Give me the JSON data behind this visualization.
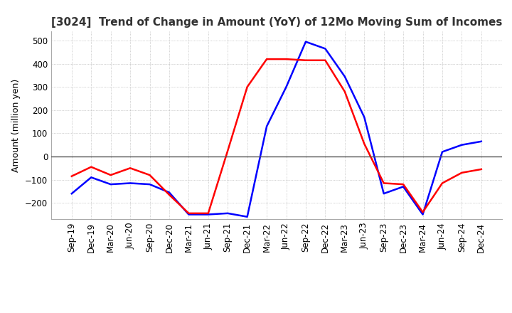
{
  "title": "[3024]  Trend of Change in Amount (YoY) of 12Mo Moving Sum of Incomes",
  "ylabel": "Amount (million yen)",
  "ylim": [
    -270,
    540
  ],
  "yticks": [
    -200,
    -100,
    0,
    100,
    200,
    300,
    400,
    500
  ],
  "x_labels": [
    "Sep-19",
    "Dec-19",
    "Mar-20",
    "Jun-20",
    "Sep-20",
    "Dec-20",
    "Mar-21",
    "Jun-21",
    "Sep-21",
    "Dec-21",
    "Mar-22",
    "Jun-22",
    "Sep-22",
    "Dec-22",
    "Mar-23",
    "Jun-23",
    "Sep-23",
    "Dec-23",
    "Mar-24",
    "Jun-24",
    "Sep-24",
    "Dec-24"
  ],
  "ordinary_income": [
    -160,
    -90,
    -120,
    -115,
    -120,
    -155,
    -250,
    -250,
    -245,
    -260,
    130,
    300,
    495,
    465,
    345,
    170,
    -160,
    -130,
    -250,
    20,
    50,
    65
  ],
  "net_income": [
    -85,
    -45,
    -80,
    -50,
    -80,
    -165,
    -245,
    -245,
    25,
    300,
    420,
    420,
    415,
    415,
    280,
    55,
    -115,
    -120,
    -240,
    -115,
    -70,
    -55
  ],
  "ordinary_color": "#0000FF",
  "net_color": "#FF0000",
  "bg_color": "#FFFFFF",
  "grid_color": "#AAAAAA",
  "line_width": 1.8,
  "title_fontsize": 11,
  "tick_fontsize": 8.5,
  "ylabel_fontsize": 9
}
